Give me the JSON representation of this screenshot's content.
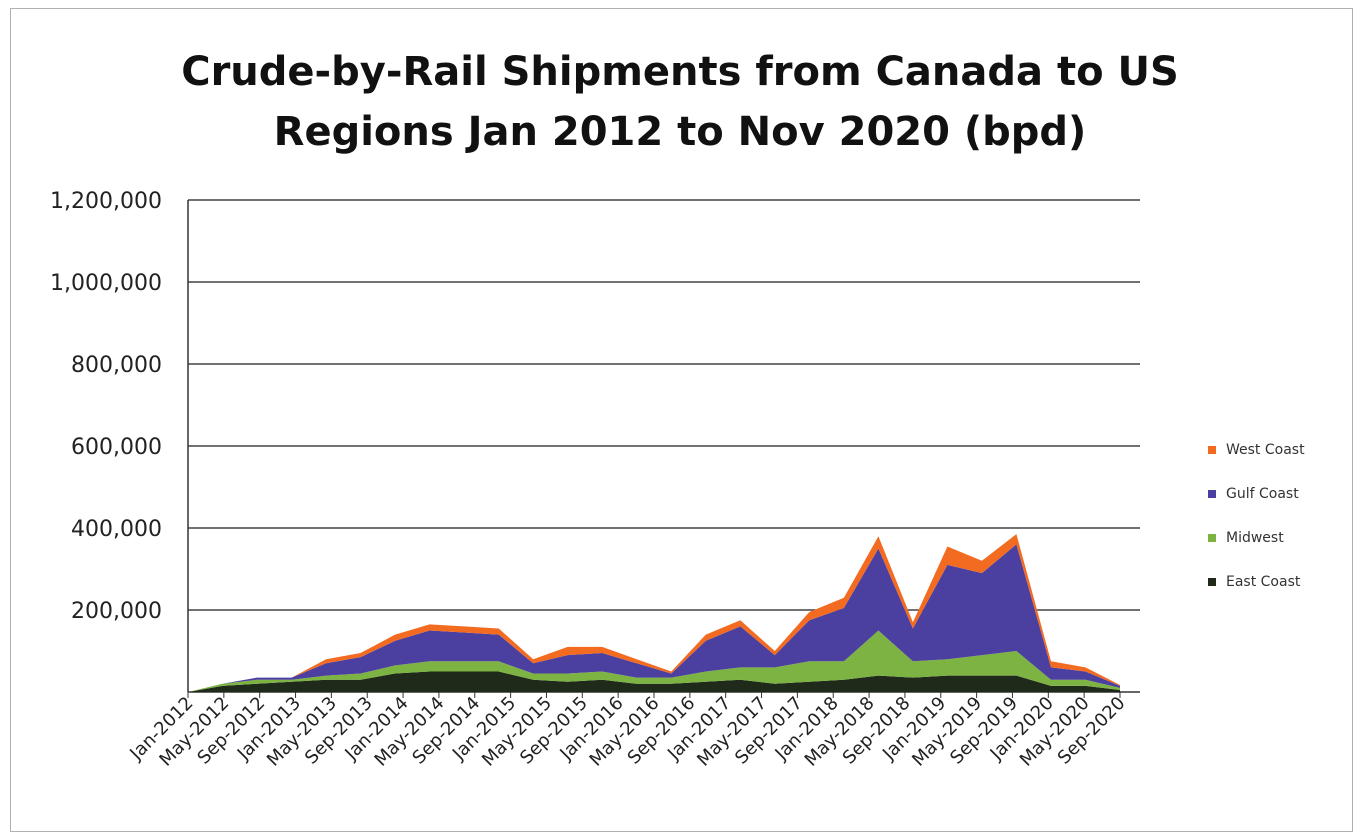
{
  "chart_data": {
    "type": "area",
    "stacked": true,
    "title_line1": "Crude-by-Rail Shipments from Canada to US",
    "title_line2": "Regions Jan 2012 to Nov 2020 (bpd)",
    "xlabel": "",
    "ylabel": "",
    "ylim": [
      0,
      1200000
    ],
    "yticks": [
      "1,200,000",
      "1,000,000",
      "800,000",
      "600,000",
      "400,000",
      "200,000"
    ],
    "ytick_values": [
      1200000,
      1000000,
      800000,
      600000,
      400000,
      200000
    ],
    "xtick_labels": [
      "Jan-2012",
      "May-2012",
      "Sep-2012",
      "Jan-2013",
      "May-2013",
      "Sep-2013",
      "Jan-2014",
      "May-2014",
      "Sep-2014",
      "Jan-2015",
      "May-2015",
      "Sep-2015",
      "Jan-2016",
      "May-2016",
      "Sep-2016",
      "Jan-2017",
      "May-2017",
      "Sep-2017",
      "Jan-2018",
      "May-2018",
      "Sep-2018",
      "Jan-2019",
      "May-2019",
      "Sep-2019",
      "Jan-2020",
      "May-2020",
      "Sep-2020"
    ],
    "grid": true,
    "legend_position": "right",
    "x": [
      "Jan-2012",
      "May-2012",
      "Sep-2012",
      "Jan-2013",
      "May-2013",
      "Sep-2013",
      "Jan-2014",
      "May-2014",
      "Sep-2014",
      "Jan-2015",
      "May-2015",
      "Sep-2015",
      "Jan-2016",
      "May-2016",
      "Sep-2016",
      "Jan-2017",
      "May-2017",
      "Sep-2017",
      "Jan-2018",
      "May-2018",
      "Sep-2018",
      "Jan-2019",
      "May-2019",
      "Sep-2019",
      "Jan-2020",
      "May-2020",
      "Sep-2020",
      "Nov-2020"
    ],
    "series": [
      {
        "name": "East Coast",
        "color": "#1f2a1a",
        "values": [
          0,
          15000,
          20000,
          25000,
          30000,
          30000,
          45000,
          50000,
          50000,
          50000,
          30000,
          25000,
          30000,
          20000,
          20000,
          25000,
          30000,
          20000,
          25000,
          30000,
          40000,
          35000,
          40000,
          40000,
          40000,
          15000,
          15000,
          5000
        ]
      },
      {
        "name": "Midwest",
        "color": "#7cb342",
        "values": [
          0,
          5000,
          10000,
          5000,
          10000,
          15000,
          20000,
          25000,
          25000,
          25000,
          15000,
          20000,
          20000,
          15000,
          15000,
          25000,
          30000,
          40000,
          50000,
          45000,
          110000,
          40000,
          40000,
          50000,
          60000,
          15000,
          15000,
          5000
        ]
      },
      {
        "name": "Gulf Coast",
        "color": "#4b3fa0",
        "values": [
          0,
          0,
          5000,
          5000,
          30000,
          40000,
          60000,
          75000,
          70000,
          65000,
          25000,
          45000,
          45000,
          35000,
          10000,
          75000,
          100000,
          30000,
          100000,
          130000,
          200000,
          80000,
          230000,
          200000,
          260000,
          30000,
          20000,
          5000
        ]
      },
      {
        "name": "West Coast",
        "color": "#f26b21",
        "values": [
          0,
          0,
          0,
          0,
          10000,
          10000,
          15000,
          15000,
          15000,
          15000,
          10000,
          20000,
          15000,
          10000,
          5000,
          15000,
          15000,
          10000,
          20000,
          25000,
          30000,
          15000,
          45000,
          30000,
          25000,
          15000,
          10000,
          2000
        ]
      }
    ]
  }
}
